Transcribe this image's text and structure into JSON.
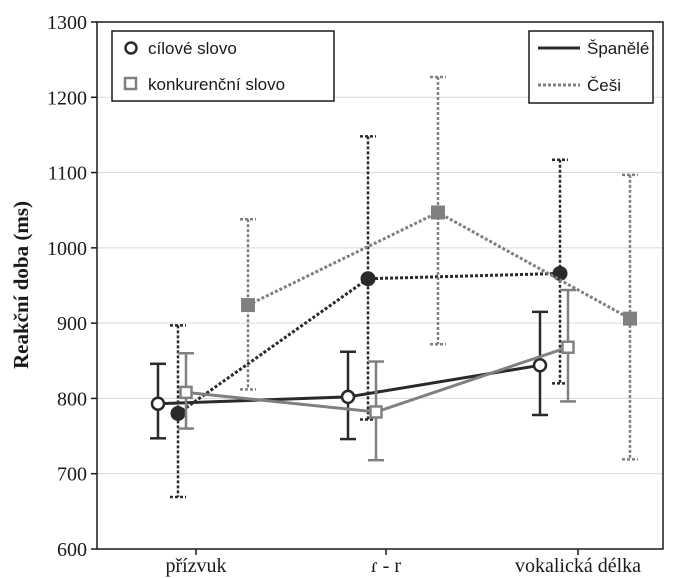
{
  "chart_data": {
    "type": "line",
    "title": "",
    "xlabel": "",
    "ylabel": "Reakční doba (ms)",
    "categories": [
      "přízvuk",
      "ɾ - r",
      "vokalická délka"
    ],
    "ylim": [
      600,
      1300
    ],
    "yticks": [
      600,
      700,
      800,
      900,
      1000,
      1100,
      1200,
      1300
    ],
    "grid": true,
    "legends": [
      {
        "placement": "top-left",
        "entries": [
          "cílové slovo",
          "konkurenční slovo"
        ]
      },
      {
        "placement": "top-right",
        "entries": [
          "Španělé",
          "Češi"
        ]
      }
    ],
    "series": [
      {
        "word": "cílové slovo",
        "group": "Španělé",
        "marker": "circle-open",
        "line": "solid",
        "color": "#2a2a2a",
        "values": [
          793,
          802,
          844
        ],
        "err_low": [
          747,
          746,
          778
        ],
        "err_high": [
          846,
          862,
          915
        ]
      },
      {
        "word": "konkurenční slovo",
        "group": "Španělé",
        "marker": "square-open",
        "line": "solid",
        "color": "#808080",
        "values": [
          808,
          782,
          868
        ],
        "err_low": [
          760,
          718,
          796
        ],
        "err_high": [
          860,
          849,
          944
        ]
      },
      {
        "word": "cílové slovo",
        "group": "Češi",
        "marker": "circle-filled",
        "line": "dotted",
        "color": "#2a2a2a",
        "values": [
          780,
          959,
          966
        ],
        "err_low": [
          669,
          772,
          820
        ],
        "err_high": [
          897,
          1148,
          1117
        ]
      },
      {
        "word": "konkurenční slovo",
        "group": "Češi",
        "marker": "square-filled",
        "line": "dotted",
        "color": "#808080",
        "values": [
          924,
          1047,
          906
        ],
        "err_low": [
          812,
          872,
          719
        ],
        "err_high": [
          1038,
          1227,
          1097
        ]
      }
    ],
    "colors": {
      "dark": "#2a2a2a",
      "gray": "#808080",
      "grid": "#d9d9d9",
      "axis": "#1a1a1a"
    }
  }
}
